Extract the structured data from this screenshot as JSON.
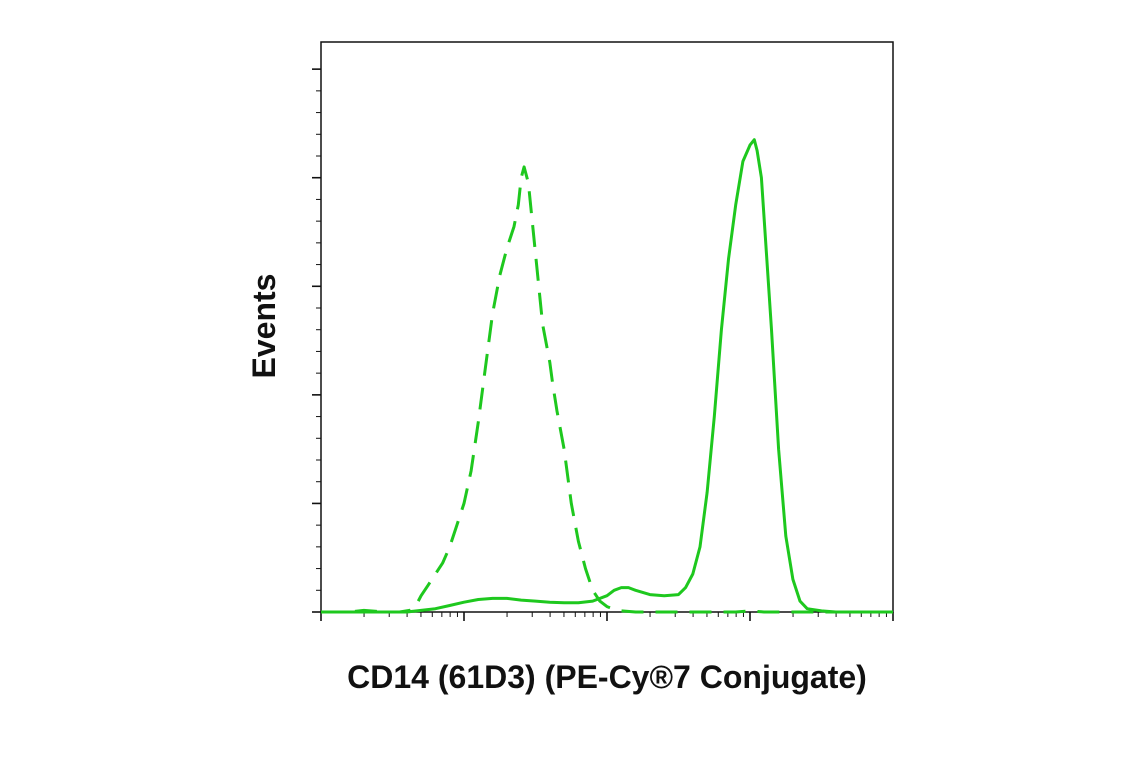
{
  "chart_data": {
    "type": "line",
    "title": "",
    "xlabel": "CD14 (61D3) (PE-Cy®7 Conjugate)",
    "ylabel": "Events",
    "x_scale": "log",
    "x_decades": [
      1,
      10,
      100,
      1000,
      10000
    ],
    "xlim_log10": [
      0,
      4
    ],
    "ylim": [
      0,
      1.05
    ],
    "y_major_ticks": [
      0,
      0.2,
      0.4,
      0.6,
      0.8,
      1.0
    ],
    "tick_labels_shown": false,
    "grid": false,
    "legend": "none",
    "series": [
      {
        "style": "dashed",
        "color": "#1ec81e",
        "x_log10": [
          0.0,
          0.2,
          0.3,
          0.45,
          0.55,
          0.62,
          0.66,
          0.7,
          0.75,
          0.8,
          0.85,
          0.9,
          0.95,
          1.0,
          1.05,
          1.1,
          1.15,
          1.2,
          1.25,
          1.3,
          1.35,
          1.38,
          1.4,
          1.42,
          1.45,
          1.5,
          1.55,
          1.6,
          1.62,
          1.65,
          1.7,
          1.75,
          1.8,
          1.85,
          1.9,
          1.95,
          2.0,
          2.05,
          2.1,
          2.2,
          2.3,
          2.5,
          2.7,
          2.9,
          3.0,
          3.1,
          3.3,
          3.6,
          4.0
        ],
        "values": [
          0.0,
          0.0,
          0.003,
          0.0,
          0.0,
          0.003,
          0.01,
          0.03,
          0.05,
          0.07,
          0.09,
          0.12,
          0.16,
          0.2,
          0.26,
          0.35,
          0.45,
          0.55,
          0.62,
          0.67,
          0.71,
          0.75,
          0.8,
          0.82,
          0.79,
          0.66,
          0.53,
          0.46,
          0.42,
          0.37,
          0.3,
          0.2,
          0.13,
          0.08,
          0.04,
          0.02,
          0.01,
          0.005,
          0.002,
          0.0,
          0.0,
          0.0,
          0.0,
          0.0,
          0.002,
          0.0,
          0.0,
          0.0,
          0.0
        ]
      },
      {
        "style": "solid",
        "color": "#1ec81e",
        "x_log10": [
          0.0,
          0.3,
          0.6,
          0.7,
          0.8,
          0.9,
          1.0,
          1.1,
          1.2,
          1.3,
          1.4,
          1.5,
          1.6,
          1.7,
          1.8,
          1.9,
          2.0,
          2.05,
          2.1,
          2.15,
          2.2,
          2.3,
          2.4,
          2.5,
          2.55,
          2.6,
          2.65,
          2.7,
          2.75,
          2.8,
          2.85,
          2.9,
          2.95,
          3.0,
          3.03,
          3.05,
          3.08,
          3.1,
          3.15,
          3.2,
          3.25,
          3.3,
          3.35,
          3.4,
          3.5,
          3.6,
          3.8,
          4.0
        ],
        "values": [
          0.0,
          0.0,
          0.0,
          0.003,
          0.006,
          0.012,
          0.018,
          0.023,
          0.025,
          0.025,
          0.022,
          0.02,
          0.018,
          0.017,
          0.017,
          0.02,
          0.03,
          0.04,
          0.045,
          0.045,
          0.04,
          0.032,
          0.03,
          0.032,
          0.045,
          0.07,
          0.12,
          0.22,
          0.36,
          0.52,
          0.65,
          0.75,
          0.83,
          0.86,
          0.87,
          0.85,
          0.8,
          0.72,
          0.52,
          0.3,
          0.14,
          0.06,
          0.02,
          0.006,
          0.002,
          0.0,
          0.0,
          0.0
        ]
      }
    ]
  }
}
